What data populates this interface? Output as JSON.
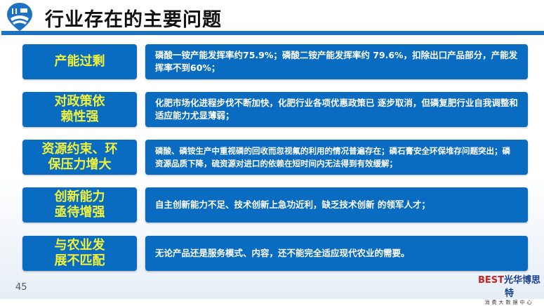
{
  "header": {
    "title": "行业存在的主要问题",
    "logo_icon": "farm-map-pin-icon"
  },
  "rows": [
    {
      "label": "产能过剩",
      "text": "磷酸一铵产能发挥率约75.9%；磷酸二铵产能发挥率约 79.6%，扣除出口产品部分，产能发挥率不到60%；"
    },
    {
      "label": "对政策依赖性强",
      "text": "化肥市场化进程步伐不断加快，化肥行业各项优惠政策已 逐步取消，但磷复肥行业自我调整和适应能力尤显薄弱；"
    },
    {
      "label": "资源约束、环保压力增大",
      "text": "磷酸、磷铵生产中重视磷的回收而忽视氟的利用的情况普遍存在；磷石膏安全环保堆存问题突出；磷资源品质下降，硫资源对进口的依赖在短时间内无法得到有效缓解；"
    },
    {
      "label": "创新能力亟待增强",
      "text": "自主创新能力不足、技术创新上急功近利，缺乏技术创新 的领军人才；"
    },
    {
      "label": "与农业发展不匹配",
      "text": "无论产品还是服务模式、内容，还不能完全适应现代农业的需要。"
    }
  ],
  "footer": {
    "page_number": "45",
    "brand_mark": "BEST",
    "brand_name": "光华博思特",
    "brand_sub": "消费大数据中心"
  },
  "colors": {
    "box": "#0a6cc0",
    "label_text": "#f2f23a",
    "rule": "#1d72c2"
  }
}
